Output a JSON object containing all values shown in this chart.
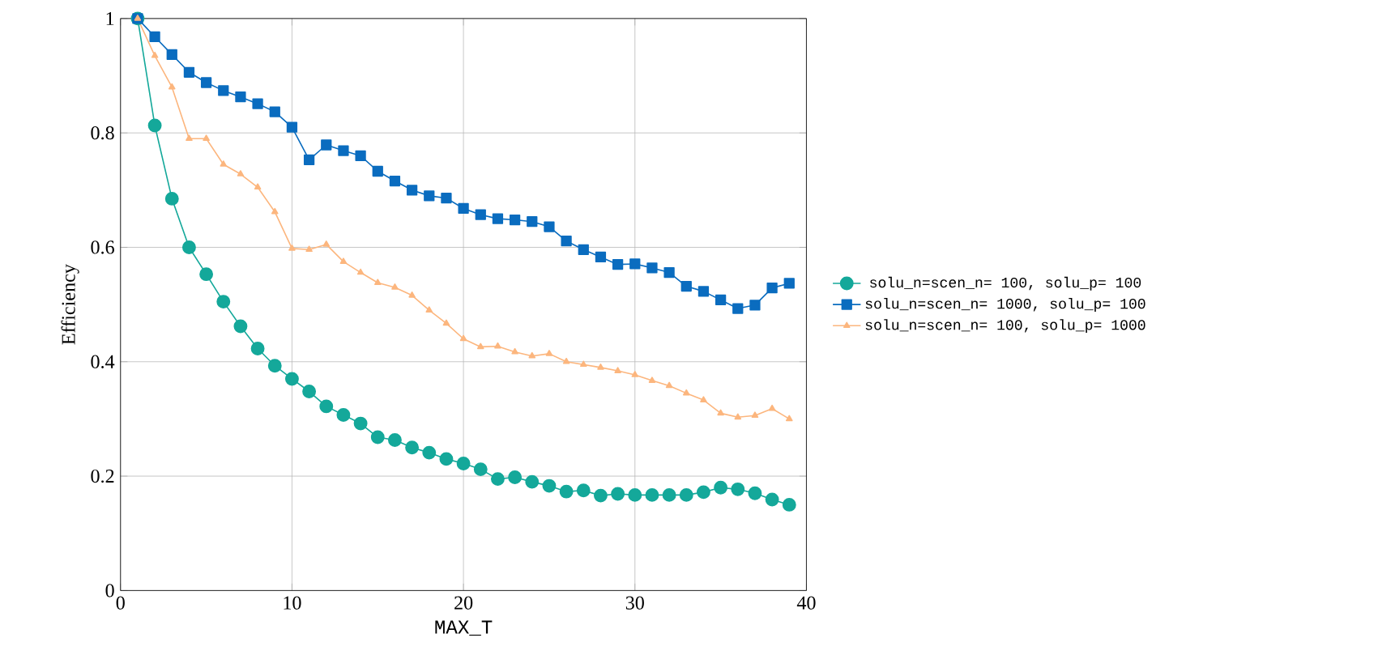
{
  "chart_data": {
    "type": "line",
    "xlabel": "MAX_T",
    "ylabel": "Efficiency",
    "x": [
      1,
      2,
      3,
      4,
      5,
      6,
      7,
      8,
      9,
      10,
      11,
      12,
      13,
      14,
      15,
      16,
      17,
      18,
      19,
      20,
      21,
      22,
      23,
      24,
      25,
      26,
      27,
      28,
      29,
      30,
      31,
      32,
      33,
      34,
      35,
      36,
      37,
      38,
      39
    ],
    "series": [
      {
        "name": "solu_n=scen_n= 100, solu_p= 100",
        "color": "#14a89a",
        "marker": "circle",
        "values": [
          1,
          0.813,
          0.685,
          0.6,
          0.553,
          0.505,
          0.462,
          0.423,
          0.393,
          0.37,
          0.348,
          0.322,
          0.307,
          0.292,
          0.268,
          0.263,
          0.25,
          0.241,
          0.23,
          0.222,
          0.212,
          0.195,
          0.198,
          0.19,
          0.183,
          0.173,
          0.175,
          0.166,
          0.169,
          0.167,
          0.167,
          0.167,
          0.167,
          0.172,
          0.18,
          0.177,
          0.17,
          0.159,
          0.15
        ]
      },
      {
        "name": "solu_n=scen_n= 1000, solu_p= 100",
        "color": "#0a6cbf",
        "marker": "square",
        "values": [
          1,
          0.968,
          0.937,
          0.906,
          0.888,
          0.874,
          0.863,
          0.851,
          0.837,
          0.81,
          0.753,
          0.779,
          0.769,
          0.76,
          0.733,
          0.716,
          0.7,
          0.69,
          0.686,
          0.668,
          0.657,
          0.65,
          0.648,
          0.645,
          0.636,
          0.611,
          0.596,
          0.583,
          0.57,
          0.571,
          0.564,
          0.556,
          0.532,
          0.523,
          0.508,
          0.493,
          0.499,
          0.529,
          0.537
        ]
      },
      {
        "name": "solu_n=scen_n= 100, solu_p= 1000",
        "color": "#fcb67e",
        "marker": "triangle",
        "values": [
          1,
          0.935,
          0.88,
          0.79,
          0.79,
          0.745,
          0.728,
          0.705,
          0.662,
          0.598,
          0.596,
          0.605,
          0.575,
          0.556,
          0.538,
          0.53,
          0.516,
          0.49,
          0.467,
          0.44,
          0.426,
          0.427,
          0.417,
          0.41,
          0.414,
          0.4,
          0.395,
          0.39,
          0.384,
          0.377,
          0.367,
          0.358,
          0.345,
          0.333,
          0.31,
          0.303,
          0.306,
          0.318,
          0.3
        ]
      }
    ],
    "xlim": [
      0,
      40
    ],
    "ylim": [
      0,
      1
    ],
    "xticks": [
      0,
      10,
      20,
      30,
      40
    ],
    "yticks": [
      0,
      0.2,
      0.4,
      0.6,
      0.8,
      1
    ],
    "grid": true,
    "legend": "right",
    "line_style": "solid"
  }
}
